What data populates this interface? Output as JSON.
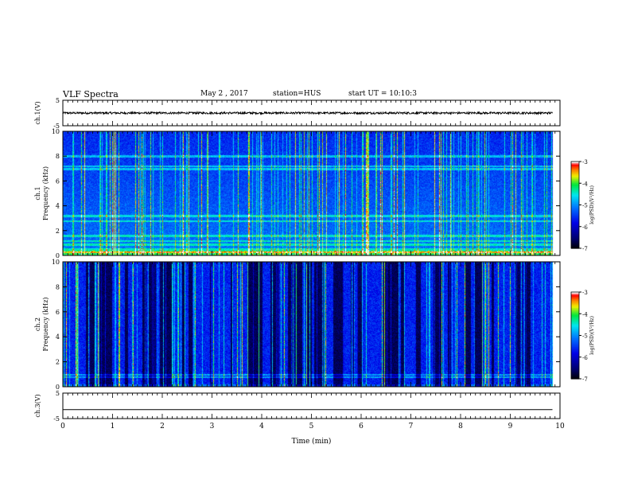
{
  "header": {
    "title": "VLF Spectra",
    "date": "May 2 , 2017",
    "station": "station=HUS",
    "start": "start UT = 10:10:3"
  },
  "chart_data": {
    "type": "heatmap",
    "x_axis": {
      "label": "Time (min)",
      "range": [
        0,
        10
      ],
      "ticks": [
        "0",
        "1",
        "2",
        "3",
        "4",
        "5",
        "6",
        "7",
        "8",
        "9",
        "10"
      ]
    },
    "panels": [
      {
        "id": "ch1-waveform",
        "type": "line",
        "ylabel": "ch.1(V)",
        "ylim": [
          -5,
          5
        ],
        "yticks": [
          "5",
          "-5"
        ],
        "baseline": 0.0,
        "noise_amplitude": 0.4,
        "data_end_min": 9.85
      },
      {
        "id": "ch1-spectrogram",
        "type": "heatmap",
        "ylabel": "ch.1",
        "ylabel2": "Frequency (kHz)",
        "ylim": [
          0,
          10
        ],
        "yticks": [
          "0",
          "2",
          "4",
          "6",
          "8",
          "10"
        ],
        "data_end_min": 9.85,
        "colorbar": {
          "label": "log(PSD)(V²/Hz)",
          "range": [
            -7,
            -3
          ],
          "ticks": [
            "-3",
            "-4",
            "-5",
            "-6",
            "-7"
          ]
        }
      },
      {
        "id": "ch2-spectrogram",
        "type": "heatmap",
        "ylabel": "ch.2",
        "ylabel2": "Frequency (kHz)",
        "ylim": [
          0,
          10
        ],
        "yticks": [
          "0",
          "2",
          "4",
          "6",
          "8",
          "10"
        ],
        "data_end_min": 9.85,
        "colorbar": {
          "label": "log(PSD)(V²/Hz)",
          "range": [
            -7,
            -3
          ],
          "ticks": [
            "-3",
            "-4",
            "-5",
            "-6",
            "-7"
          ]
        }
      },
      {
        "id": "ch3-waveform",
        "type": "line",
        "ylabel": "ch.3(V)",
        "ylim": [
          -5,
          5
        ],
        "yticks": [
          "5",
          "-5"
        ],
        "baseline": -1.5,
        "noise_amplitude": 0.0,
        "data_end_min": 9.85
      }
    ],
    "colors": {
      "frame": "#000000",
      "colormap": [
        "#000000",
        "#00008b",
        "#0000ff",
        "#0080ff",
        "#00ffff",
        "#00ff00",
        "#ffff00",
        "#ff8000",
        "#ff0000",
        "#ffffff"
      ]
    }
  }
}
